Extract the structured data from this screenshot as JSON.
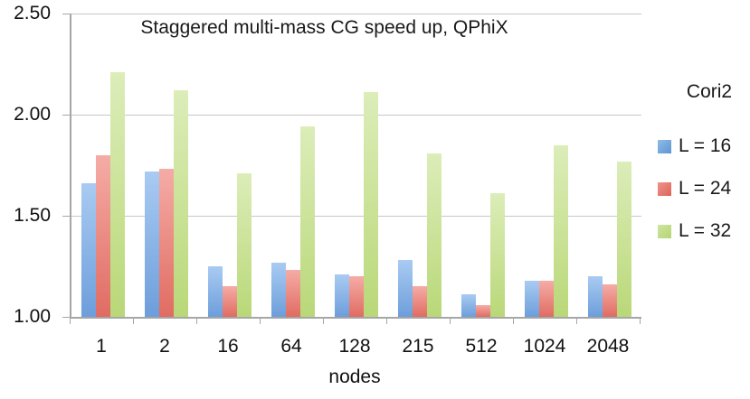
{
  "chart_data": {
    "type": "bar",
    "title": "Staggered multi-mass CG speed up, QPhiX",
    "xlabel": "nodes",
    "legend_title": "Cori2",
    "legend_position": "right",
    "grid": "horizontal",
    "categories": [
      "1",
      "2",
      "16",
      "64",
      "128",
      "215",
      "512",
      "1024",
      "2048"
    ],
    "series": [
      {
        "name": "L = 16",
        "values": [
          1.66,
          1.72,
          1.25,
          1.27,
          1.21,
          1.28,
          1.11,
          1.18,
          1.2
        ],
        "color_top": "#a9cbf2",
        "color_bottom": "#6d9edb",
        "legend_color_top": "#8fbbe8",
        "legend_color_bottom": "#5e95d2"
      },
      {
        "name": "L = 24",
        "values": [
          1.8,
          1.73,
          1.15,
          1.23,
          1.2,
          1.15,
          1.06,
          1.18,
          1.16
        ],
        "color_top": "#f5aca6",
        "color_bottom": "#e06c62",
        "legend_color_top": "#ef948d",
        "legend_color_bottom": "#dd6459"
      },
      {
        "name": "L = 32",
        "values": [
          2.21,
          2.12,
          1.71,
          1.94,
          2.11,
          1.81,
          1.61,
          1.85,
          1.77
        ],
        "color_top": "#dcedb9",
        "color_bottom": "#b9d878",
        "legend_color_top": "#cfe5a2",
        "legend_color_bottom": "#b4d571"
      }
    ],
    "ylim": [
      1.0,
      2.5
    ],
    "yticks": [
      {
        "value": 2.5,
        "label": "2.50"
      },
      {
        "value": 2.0,
        "label": "2.00"
      },
      {
        "value": 1.5,
        "label": "1.50"
      },
      {
        "value": 1.0,
        "label": "1.00"
      }
    ]
  },
  "colors": {
    "gridline": "#c6c6c6",
    "axis": "#a6a6a6",
    "text": "#1a1a1a",
    "background": "#ffffff"
  }
}
